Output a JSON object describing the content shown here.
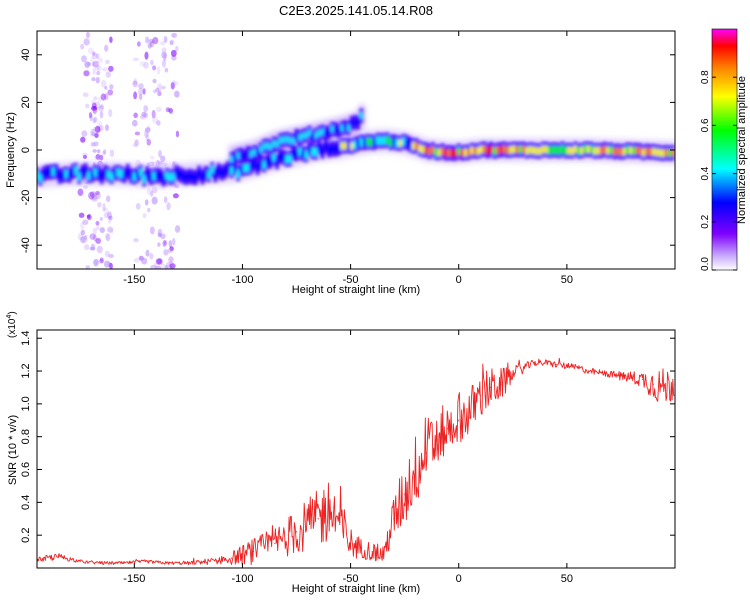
{
  "figure_title": "C2E3.2025.141.05.14.R08",
  "chart_data": [
    {
      "type": "heatmap",
      "title": "C2E3.2025.141.05.14.R08",
      "xlabel": "Height of straight line (km)",
      "ylabel": "Frequency (Hz)",
      "xlim": [
        -195,
        100
      ],
      "ylim": [
        -50,
        50
      ],
      "x_ticks": [
        -150,
        -100,
        -50,
        0,
        50
      ],
      "y_ticks": [
        -40,
        -20,
        0,
        20,
        40
      ],
      "x_tick_labels": [
        "-150",
        "-100",
        "-50",
        "0",
        "50"
      ],
      "y_tick_labels": [
        "-40",
        "-20",
        "0",
        "20",
        "40"
      ],
      "colorbar": {
        "label": "Normalized spectral amplitude",
        "range": [
          0.0,
          1.0
        ],
        "ticks": [
          0.0,
          0.2,
          0.4,
          0.6,
          0.8
        ],
        "tick_labels": [
          "0.0",
          "0.2",
          "0.4",
          "0.6",
          "0.8"
        ],
        "colormap": [
          "#ffffff",
          "#c8a8ff",
          "#8000ff",
          "#0000ff",
          "#00ffff",
          "#00ff00",
          "#ffff00",
          "#ff8000",
          "#ff0000",
          "#ff00ff"
        ]
      },
      "main_track": {
        "x": [
          -195,
          -180,
          -160,
          -140,
          -120,
          -105,
          -95,
          -85,
          -75,
          -65,
          -55,
          -45,
          -35,
          -25,
          -15,
          -5,
          0,
          10,
          30,
          60,
          95
        ],
        "y": [
          -11,
          -10,
          -10,
          -11,
          -10,
          -9,
          -7,
          -4,
          -2,
          0,
          1,
          3,
          4,
          3,
          0,
          -1,
          -1,
          0,
          0,
          0,
          -1
        ]
      },
      "branch_track": {
        "x": [
          -105,
          -95,
          -85,
          -75,
          -65,
          -55,
          -48,
          -45
        ],
        "y": [
          -3,
          -1,
          3,
          5,
          7,
          9,
          11,
          14
        ]
      },
      "noise_columns_x": [
        -170,
        -165,
        -145,
        -135
      ]
    },
    {
      "type": "line",
      "xlabel": "Height of straight line (km)",
      "ylabel": "SNR (10 * v/v)",
      "scale_label": "(x10",
      "scale_exponent": "4",
      "scale_suffix": ")",
      "xlim": [
        -195,
        100
      ],
      "ylim": [
        0,
        1.45
      ],
      "x_ticks": [
        -150,
        -100,
        -50,
        0,
        50
      ],
      "y_ticks": [
        0.2,
        0.4,
        0.6,
        0.8,
        1.0,
        1.2,
        1.4
      ],
      "x_tick_labels": [
        "-150",
        "-100",
        "-50",
        "0",
        "50"
      ],
      "y_tick_labels": [
        "0.2",
        "0.4",
        "0.6",
        "0.8",
        "1.0",
        "1.2",
        "1.4"
      ],
      "series": [
        {
          "name": "SNR",
          "color": "#ee2222",
          "x": [
            -195,
            -185,
            -175,
            -165,
            -155,
            -145,
            -135,
            -125,
            -115,
            -105,
            -95,
            -85,
            -75,
            -65,
            -60,
            -55,
            -50,
            -45,
            -40,
            -35,
            -30,
            -25,
            -20,
            -15,
            -10,
            -5,
            0,
            5,
            10,
            15,
            20,
            25,
            30,
            35,
            40,
            45,
            50,
            55,
            60,
            65,
            70,
            75,
            80,
            85,
            90,
            95,
            100
          ],
          "y": [
            0.05,
            0.07,
            0.04,
            0.03,
            0.03,
            0.04,
            0.03,
            0.03,
            0.04,
            0.06,
            0.1,
            0.15,
            0.22,
            0.3,
            0.35,
            0.28,
            0.15,
            0.12,
            0.1,
            0.08,
            0.3,
            0.45,
            0.6,
            0.7,
            0.78,
            0.85,
            0.9,
            0.95,
            1.05,
            1.1,
            1.12,
            1.18,
            1.22,
            1.25,
            1.25,
            1.24,
            1.23,
            1.22,
            1.2,
            1.19,
            1.18,
            1.17,
            1.16,
            1.15,
            1.12,
            1.1,
            1.12
          ],
          "noise": [
            0.02,
            0.02,
            0.01,
            0.01,
            0.01,
            0.01,
            0.01,
            0.01,
            0.02,
            0.04,
            0.08,
            0.1,
            0.14,
            0.18,
            0.2,
            0.18,
            0.1,
            0.06,
            0.06,
            0.05,
            0.15,
            0.2,
            0.22,
            0.22,
            0.18,
            0.15,
            0.14,
            0.15,
            0.15,
            0.12,
            0.1,
            0.05,
            0.03,
            0.02,
            0.02,
            0.02,
            0.02,
            0.02,
            0.02,
            0.02,
            0.02,
            0.03,
            0.04,
            0.05,
            0.1,
            0.12,
            0.1
          ]
        }
      ]
    }
  ]
}
